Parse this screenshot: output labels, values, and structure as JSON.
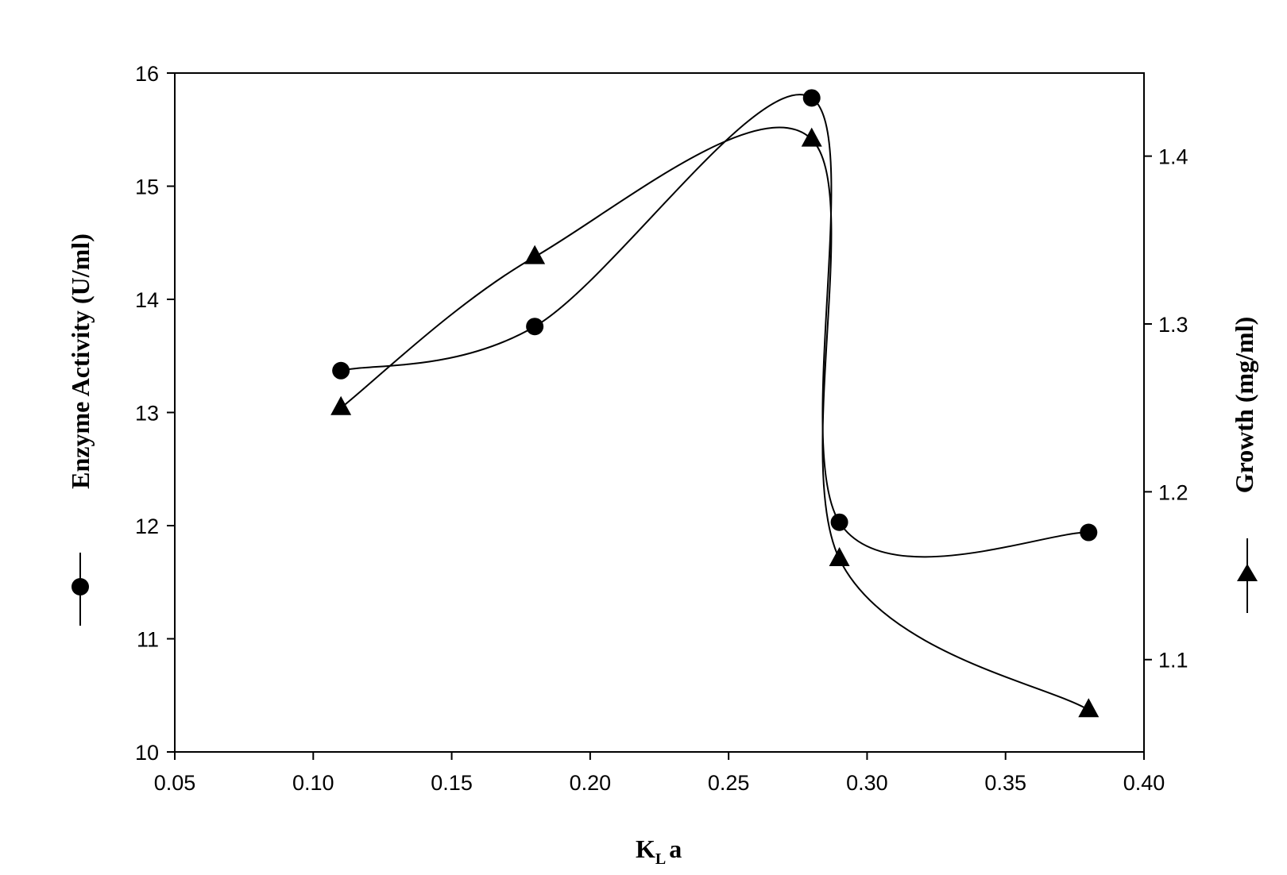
{
  "chart_data": {
    "type": "line",
    "xlabel": {
      "main": "K",
      "sub": "L",
      "suffix": "a"
    },
    "ylabel_left": "Enzyme Activity (U/ml)",
    "ylabel_right": "Growth (mg/ml)",
    "xlim": [
      0.05,
      0.4
    ],
    "ylim_left": [
      10,
      16
    ],
    "ylim_right": [
      1.045,
      1.4495
    ],
    "x_ticks": [
      "0.05",
      "0.10",
      "0.15",
      "0.20",
      "0.25",
      "0.30",
      "0.35",
      "0.40"
    ],
    "y_left_ticks": [
      "10",
      "11",
      "12",
      "13",
      "14",
      "15",
      "16"
    ],
    "y_right_ticks": [
      "1.1",
      "1.2",
      "1.3",
      "1.4"
    ],
    "grid": false,
    "series": [
      {
        "marker": "circle",
        "axis": "left",
        "x": [
          0.11,
          0.18,
          0.28,
          0.29,
          0.38
        ],
        "y": [
          13.37,
          13.76,
          15.78,
          12.03,
          11.94
        ]
      },
      {
        "marker": "triangle",
        "axis": "right",
        "x": [
          0.11,
          0.18,
          0.28,
          0.29,
          0.38
        ],
        "y": [
          1.25,
          1.34,
          1.41,
          1.16,
          1.07
        ]
      }
    ]
  }
}
